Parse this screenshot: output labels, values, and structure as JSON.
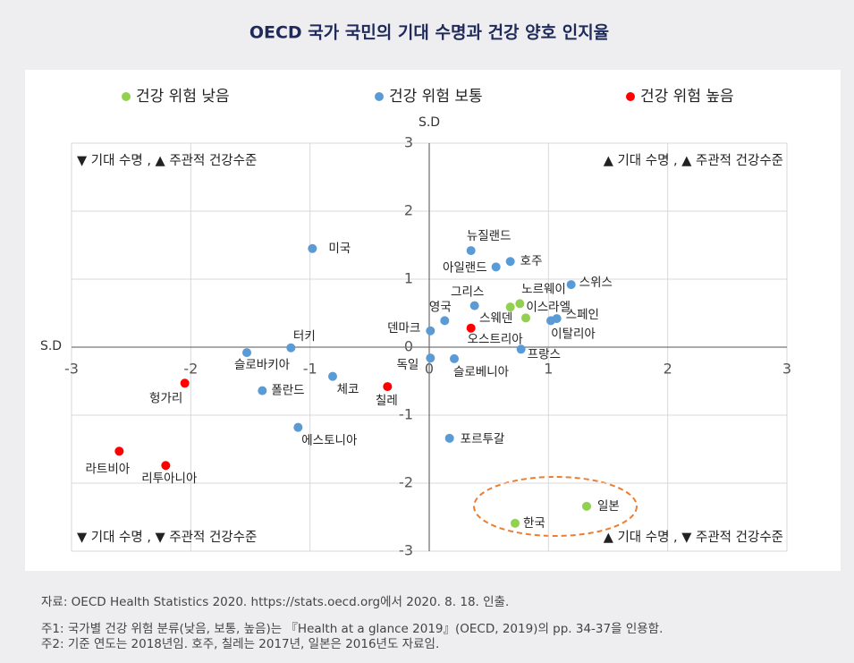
{
  "chart_data": {
    "type": "scatter",
    "title": "OECD 국가 국민의 기대 수명과 건강 양호 인지율",
    "x_label": "S.D",
    "y_label": "S.D",
    "xlim": [
      -3,
      3
    ],
    "ylim": [
      -3,
      3
    ],
    "xticks": [
      -3,
      -2,
      -1,
      0,
      1,
      2,
      3
    ],
    "yticks": [
      -3,
      -2,
      -1,
      0,
      1,
      2,
      3
    ],
    "grid": true,
    "quadrant_labels": [
      "▼ 기대 수명 , ▲ 주관적 건강수준",
      "▲ 기대 수명 , ▲ 주관적 건강수준",
      "▼ 기대 수명 , ▼ 주관적 건강수준",
      "▲ 기대 수명 , ▼ 주관적 건강수준"
    ],
    "series": [
      {
        "name": "건강 위험 낮음",
        "color": "#92d050",
        "labels": [
          "스웨덴",
          "이스라엘",
          "노르웨이",
          "한국",
          "일본"
        ],
        "x": [
          0.68,
          0.76,
          0.81,
          0.72,
          1.32
        ],
        "y": [
          0.59,
          0.64,
          0.43,
          -2.59,
          -2.34
        ]
      },
      {
        "name": "건강 위험 보통",
        "color": "#5b9bd5",
        "labels": [
          "미국",
          "뉴질랜드",
          "호주",
          "아일랜드",
          "스위스",
          "그리스",
          "영국",
          "스페인",
          "이탈리아",
          "덴마크",
          "터키",
          "슬로바키아",
          "프랑스",
          "독일",
          "슬로베니아",
          "체코",
          "폴란드",
          "에스토니아",
          "포르투갈"
        ],
        "x": [
          -0.98,
          0.35,
          0.68,
          0.56,
          1.19,
          0.38,
          0.13,
          1.07,
          1.02,
          0.01,
          -1.16,
          -1.53,
          0.77,
          0.01,
          0.21,
          -0.81,
          -1.4,
          -1.1,
          0.17
        ],
        "y": [
          1.45,
          1.42,
          1.26,
          1.18,
          0.92,
          0.61,
          0.39,
          0.42,
          0.39,
          0.24,
          -0.01,
          -0.08,
          -0.03,
          -0.16,
          -0.17,
          -0.43,
          -0.64,
          -1.18,
          -1.34
        ]
      },
      {
        "name": "건강 위험 높음",
        "color": "#ff0000",
        "labels": [
          "오스트리아",
          "헝가리",
          "칠레",
          "라트비아",
          "리투아니아"
        ],
        "x": [
          0.35,
          -2.05,
          -0.35,
          -2.6,
          -2.21
        ],
        "y": [
          0.28,
          -0.53,
          -0.58,
          -1.53,
          -1.74
        ]
      }
    ],
    "source": "자료: OECD Health Statistics 2020. https://stats.oecd.org에서 2020. 8. 18. 인출.",
    "notes": [
      "주1: 국가별 건강 위험 분류(낮음, 보통, 높음)는 『Health at a glance 2019』(OECD, 2019)의 pp. 34-37을 인용함.",
      "주2: 기준 연도는 2018년임. 호주, 칠레는 2017년, 일본은 2016년도 자료임."
    ]
  }
}
